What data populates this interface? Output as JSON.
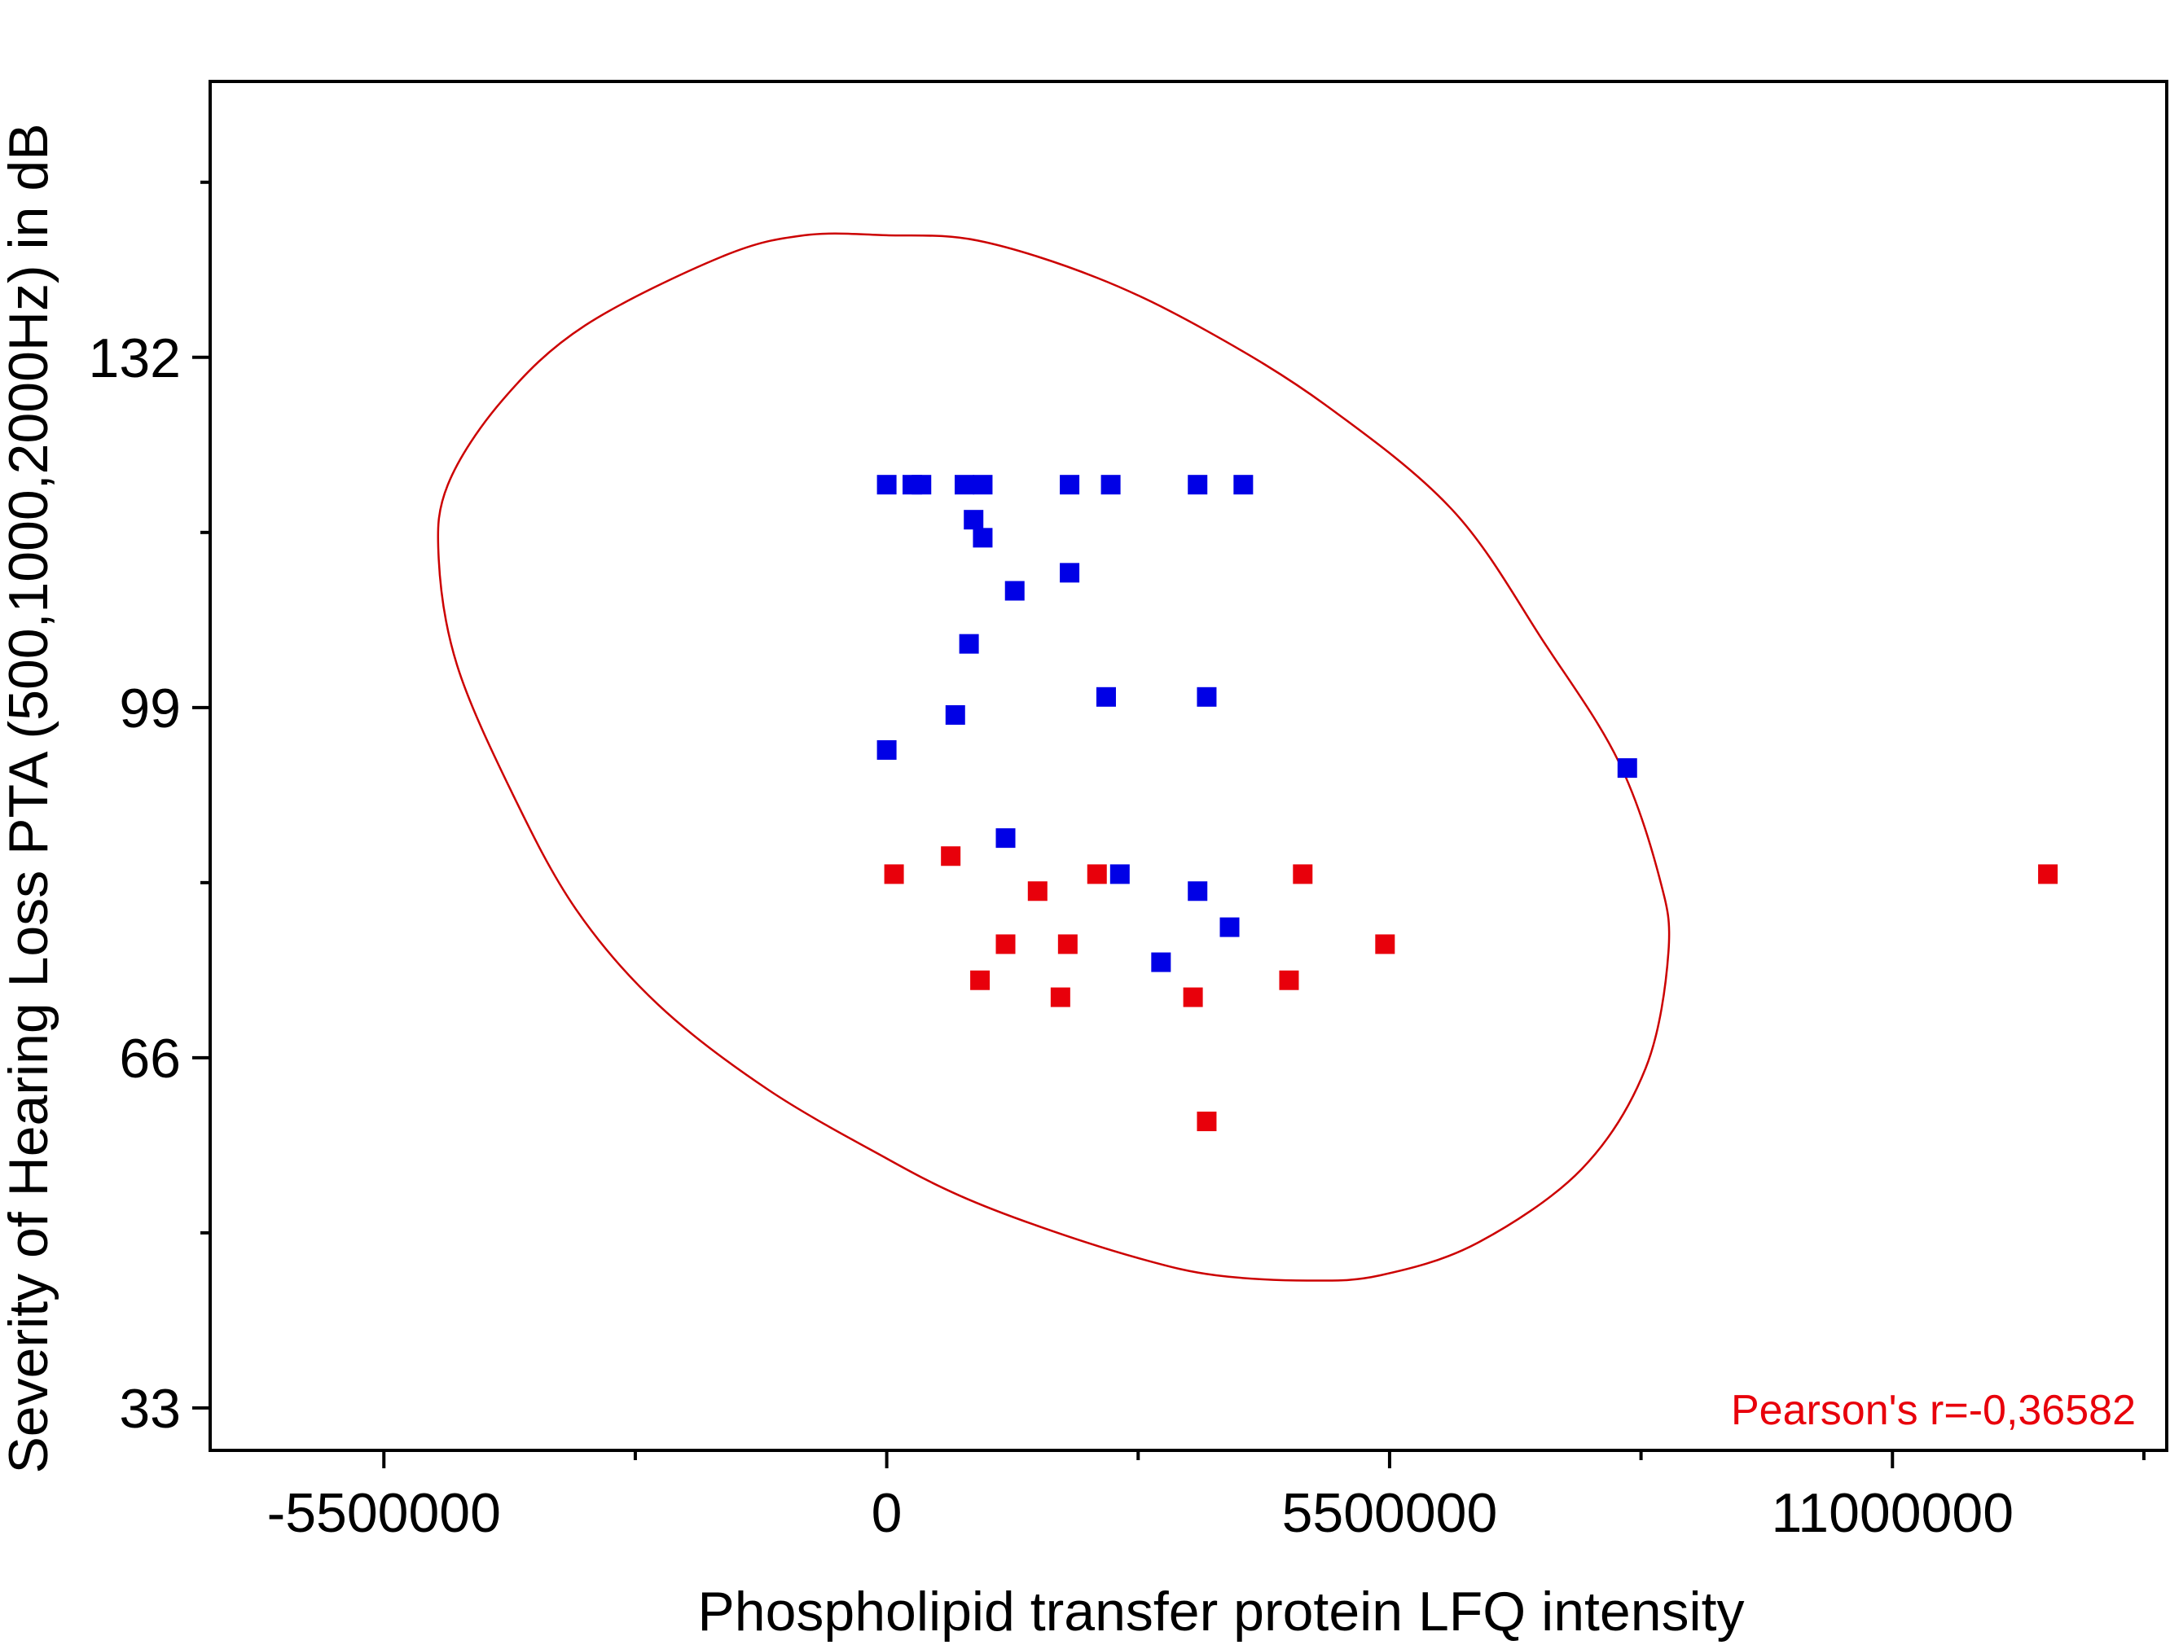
{
  "chart_data": {
    "type": "scatter",
    "xlabel": "Phospholipid transfer protein LFQ intensity",
    "ylabel": "Severity of Hearing Loss PTA (500,1000,2000Hz) in dB",
    "xlim": [
      -7400000,
      14000000
    ],
    "ylim": [
      29,
      158
    ],
    "x_ticks": [
      -5500000,
      0,
      5500000,
      11000000
    ],
    "x_tick_labels": [
      "-5500000",
      "0",
      "5500000",
      "11000000"
    ],
    "y_ticks": [
      33,
      66,
      99,
      132
    ],
    "y_tick_labels": [
      "33",
      "66",
      "99",
      "132"
    ],
    "x_minor_ticks": [
      -2750000,
      2750000,
      8250000,
      13750000
    ],
    "y_minor_ticks": [
      49.5,
      82.5,
      115.5,
      148.5
    ],
    "grid": false,
    "annotation": {
      "text": "Pearson's r=-0,36582",
      "color": "#e8000b",
      "placement": "bottom-right"
    },
    "ellipse": {
      "color": "#cc0000",
      "points": [
        [
          0,
          143.5
        ],
        [
          1000000,
          143
        ],
        [
          2300000,
          139.5
        ],
        [
          3500000,
          134.5
        ],
        [
          4800000,
          127.5
        ],
        [
          6200000,
          117.5
        ],
        [
          7200000,
          105
        ],
        [
          8000000,
          94
        ],
        [
          8450000,
          83
        ],
        [
          8550000,
          76
        ],
        [
          8300000,
          65
        ],
        [
          7600000,
          55.5
        ],
        [
          6450000,
          48.5
        ],
        [
          5400000,
          45.5
        ],
        [
          4600000,
          45
        ],
        [
          3600000,
          45.5
        ],
        [
          2800000,
          47
        ],
        [
          1700000,
          50
        ],
        [
          800000,
          53
        ],
        [
          0,
          56.5
        ],
        [
          -1300000,
          63
        ],
        [
          -2500000,
          71
        ],
        [
          -3400000,
          80
        ],
        [
          -4100000,
          91
        ],
        [
          -4700000,
          103
        ],
        [
          -4900000,
          113
        ],
        [
          -4800000,
          120
        ],
        [
          -4200000,
          128
        ],
        [
          -3300000,
          135
        ],
        [
          -1800000,
          141.5
        ],
        [
          -900000,
          143.5
        ]
      ]
    },
    "series": [
      {
        "color": "#0000e6",
        "marker": "square",
        "points": [
          [
            0,
            120
          ],
          [
            280000,
            120
          ],
          [
            380000,
            120
          ],
          [
            850000,
            120
          ],
          [
            1050000,
            120
          ],
          [
            2000000,
            120
          ],
          [
            2450000,
            120
          ],
          [
            3400000,
            120
          ],
          [
            3900000,
            120
          ],
          [
            950000,
            116.7
          ],
          [
            1050000,
            115
          ],
          [
            1400000,
            110
          ],
          [
            2000000,
            111.7
          ],
          [
            900000,
            105
          ],
          [
            3500000,
            100
          ],
          [
            2400000,
            100
          ],
          [
            750000,
            98.3
          ],
          [
            0,
            95
          ],
          [
            8100000,
            93.3
          ],
          [
            1300000,
            86.7
          ],
          [
            2550000,
            83.3
          ],
          [
            3400000,
            81.7
          ],
          [
            3750000,
            78.3
          ],
          [
            3000000,
            75
          ]
        ]
      },
      {
        "color": "#e8000b",
        "marker": "square",
        "points": [
          [
            80000,
            83.3
          ],
          [
            700000,
            85
          ],
          [
            1650000,
            81.7
          ],
          [
            2300000,
            83.3
          ],
          [
            4550000,
            83.3
          ],
          [
            12700000,
            83.3
          ],
          [
            1300000,
            76.7
          ],
          [
            1980000,
            76.7
          ],
          [
            5450000,
            76.7
          ],
          [
            1020000,
            73.3
          ],
          [
            1900000,
            71.7
          ],
          [
            3350000,
            71.7
          ],
          [
            4400000,
            73.3
          ],
          [
            3500000,
            60
          ]
        ]
      }
    ]
  }
}
